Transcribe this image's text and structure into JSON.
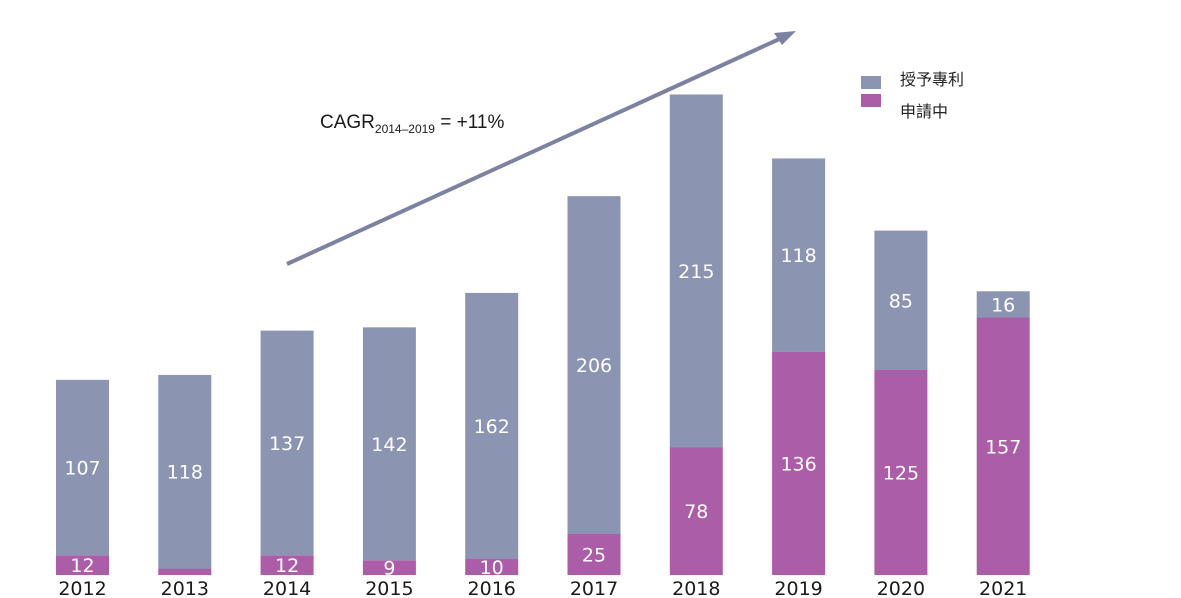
{
  "chart_data": {
    "type": "bar",
    "stacked": true,
    "categories": [
      "2012",
      "2013",
      "2014",
      "2015",
      "2016",
      "2017",
      "2018",
      "2019",
      "2020",
      "2021"
    ],
    "series": [
      {
        "name": "申請中",
        "color": "#ab5da8",
        "values": [
          12,
          4,
          12,
          9,
          10,
          25,
          78,
          136,
          125,
          157
        ],
        "labels": [
          "12",
          "",
          "12",
          "9",
          "10",
          "25",
          "78",
          "136",
          "125",
          "157"
        ]
      },
      {
        "name": "授予專利",
        "color": "#8b94b1",
        "values": [
          107,
          118,
          137,
          142,
          162,
          206,
          215,
          118,
          85,
          16
        ],
        "labels": [
          "107",
          "118",
          "137",
          "142",
          "162",
          "206",
          "215",
          "118",
          "85",
          "16"
        ]
      }
    ],
    "ylim": [
      0,
      293
    ],
    "grid": false,
    "legend_position": "top-right",
    "annotation": {
      "cagr_main": "CAGR",
      "cagr_sub": "2014–2019",
      "cagr_value": " = +11%",
      "arrow_color": "#7c82a0"
    }
  }
}
